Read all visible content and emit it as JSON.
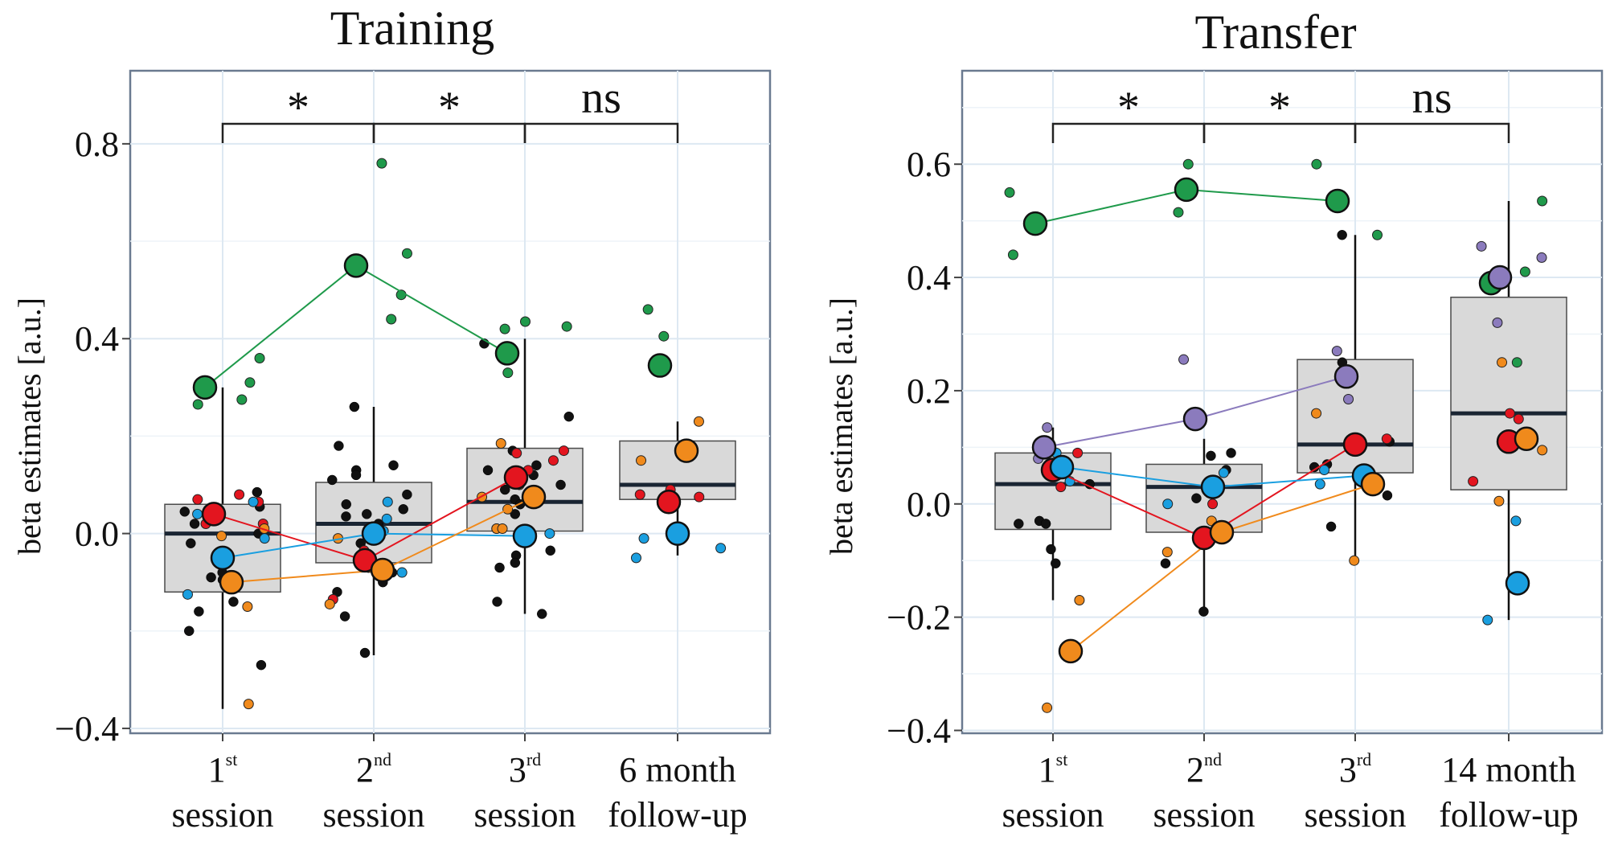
{
  "figure": {
    "width": 2003,
    "height": 1046
  },
  "chart_data": [
    {
      "type": "box_scatter",
      "title": "Training",
      "ylabel": "beta estimates [a.u.]",
      "ylim": [
        -0.41,
        0.95
      ],
      "yticks": [
        -0.4,
        0.0,
        0.4,
        0.8
      ],
      "ytick_labels": [
        "−0.4",
        "0.0",
        "0.4",
        "0.8"
      ],
      "categories": [
        {
          "line1": "1",
          "sup": "st",
          "line2": "session"
        },
        {
          "line1": "2",
          "sup": "nd",
          "line2": "session"
        },
        {
          "line1": "3",
          "sup": "rd",
          "line2": "session"
        },
        {
          "line1": "6 month",
          "sup": "",
          "line2": "follow-up"
        }
      ],
      "boxes": [
        {
          "q1": -0.12,
          "median": 0.0,
          "q3": 0.06,
          "low": -0.36,
          "high": 0.3
        },
        {
          "q1": -0.06,
          "median": 0.02,
          "q3": 0.105,
          "low": -0.25,
          "high": 0.26
        },
        {
          "q1": 0.005,
          "median": 0.065,
          "q3": 0.175,
          "low": -0.165,
          "high": 0.4
        },
        {
          "q1": 0.07,
          "median": 0.1,
          "q3": 0.19,
          "low": -0.045,
          "high": 0.23
        }
      ],
      "significance": [
        {
          "from": 0,
          "to": 1,
          "label": "*"
        },
        {
          "from": 1,
          "to": 2,
          "label": "*"
        },
        {
          "from": 2,
          "to": 3,
          "label": "ns"
        }
      ],
      "groups": [
        {
          "name": "green",
          "color": "#1f9a4b",
          "means": [
            0.3,
            0.55,
            0.37,
            0.345
          ],
          "points": [
            [
              0,
              0.265
            ],
            [
              0,
              0.275
            ],
            [
              0,
              0.31
            ],
            [
              0,
              0.36
            ],
            [
              1,
              0.575
            ],
            [
              1,
              0.49
            ],
            [
              1,
              0.44
            ],
            [
              1,
              0.76
            ],
            [
              2,
              0.435
            ],
            [
              2,
              0.425
            ],
            [
              2,
              0.42
            ],
            [
              2,
              0.33
            ],
            [
              3,
              0.46
            ],
            [
              3,
              0.405
            ],
            [
              3,
              0.18
            ]
          ]
        },
        {
          "name": "red",
          "color": "#e3151f",
          "means": [
            0.04,
            -0.055,
            0.115,
            0.065
          ],
          "points": [
            [
              0,
              0.08
            ],
            [
              0,
              0.07
            ],
            [
              0,
              0.065
            ],
            [
              0,
              0.02
            ],
            [
              0,
              0.02
            ],
            [
              1,
              -0.005
            ],
            [
              1,
              -0.035
            ],
            [
              1,
              -0.135
            ],
            [
              2,
              0.17
            ],
            [
              2,
              0.165
            ],
            [
              2,
              0.15
            ],
            [
              2,
              0.13
            ],
            [
              3,
              0.09
            ],
            [
              3,
              0.08
            ],
            [
              3,
              0.075
            ]
          ]
        },
        {
          "name": "blue",
          "color": "#1a9fe0",
          "means": [
            -0.05,
            0.0,
            -0.005,
            0.0
          ],
          "points": [
            [
              0,
              0.065
            ],
            [
              0,
              0.04
            ],
            [
              0,
              -0.01
            ],
            [
              0,
              -0.125
            ],
            [
              1,
              0.065
            ],
            [
              1,
              0.03
            ],
            [
              1,
              0.005
            ],
            [
              1,
              -0.08
            ],
            [
              2,
              0.01
            ],
            [
              2,
              0.0
            ],
            [
              3,
              -0.01
            ],
            [
              3,
              -0.03
            ],
            [
              3,
              -0.05
            ]
          ]
        },
        {
          "name": "orange",
          "color": "#f08a1c",
          "means": [
            -0.1,
            -0.075,
            0.075,
            0.17
          ],
          "points": [
            [
              0,
              0.01
            ],
            [
              0,
              -0.005
            ],
            [
              0,
              -0.15
            ],
            [
              0,
              -0.35
            ],
            [
              1,
              -0.01
            ],
            [
              1,
              -0.07
            ],
            [
              1,
              -0.145
            ],
            [
              2,
              0.185
            ],
            [
              2,
              0.1
            ],
            [
              2,
              0.075
            ],
            [
              2,
              0.05
            ],
            [
              2,
              0.01
            ],
            [
              2,
              0.01
            ],
            [
              3,
              0.23
            ],
            [
              3,
              0.15
            ]
          ]
        }
      ],
      "black_points": [
        [
          0,
          0.085
        ],
        [
          0,
          0.055
        ],
        [
          0,
          0.045
        ],
        [
          0,
          0.03
        ],
        [
          0,
          0.0
        ],
        [
          0,
          -0.02
        ],
        [
          0,
          -0.09
        ],
        [
          0,
          -0.095
        ],
        [
          0,
          -0.14
        ],
        [
          0,
          -0.16
        ],
        [
          0,
          -0.2
        ],
        [
          0,
          -0.27
        ],
        [
          0,
          0.03
        ],
        [
          0,
          0.02
        ],
        [
          0,
          -0.08
        ],
        [
          1,
          0.26
        ],
        [
          1,
          0.18
        ],
        [
          1,
          0.14
        ],
        [
          1,
          0.13
        ],
        [
          1,
          0.12
        ],
        [
          1,
          0.11
        ],
        [
          1,
          0.08
        ],
        [
          1,
          0.06
        ],
        [
          1,
          0.05
        ],
        [
          1,
          0.04
        ],
        [
          1,
          0.035
        ],
        [
          1,
          0.02
        ],
        [
          1,
          -0.02
        ],
        [
          1,
          -0.08
        ],
        [
          1,
          -0.1
        ],
        [
          1,
          -0.12
        ],
        [
          1,
          -0.17
        ],
        [
          1,
          -0.245
        ],
        [
          2,
          0.39
        ],
        [
          2,
          0.24
        ],
        [
          2,
          0.17
        ],
        [
          2,
          0.14
        ],
        [
          2,
          0.12
        ],
        [
          2,
          0.1
        ],
        [
          2,
          0.09
        ],
        [
          2,
          0.07
        ],
        [
          2,
          0.06
        ],
        [
          2,
          0.04
        ],
        [
          2,
          -0.035
        ],
        [
          2,
          -0.045
        ],
        [
          2,
          -0.06
        ],
        [
          2,
          -0.07
        ],
        [
          2,
          -0.14
        ],
        [
          2,
          -0.165
        ],
        [
          2,
          0.13
        ]
      ]
    },
    {
      "type": "box_scatter",
      "title": "Transfer",
      "ylabel": "beta estimates [a.u.]",
      "ylim": [
        -0.405,
        0.765
      ],
      "yticks": [
        -0.4,
        -0.2,
        0.0,
        0.2,
        0.4,
        0.6
      ],
      "ytick_labels": [
        "−0.4",
        "−0.2",
        "0.0",
        "0.2",
        "0.4",
        "0.6"
      ],
      "categories": [
        {
          "line1": "1",
          "sup": "st",
          "line2": "session"
        },
        {
          "line1": "2",
          "sup": "nd",
          "line2": "session"
        },
        {
          "line1": "3",
          "sup": "rd",
          "line2": "session"
        },
        {
          "line1": "14 month",
          "sup": "",
          "line2": "follow-up"
        }
      ],
      "boxes": [
        {
          "q1": -0.045,
          "median": 0.035,
          "q3": 0.09,
          "low": -0.17,
          "high": 0.135
        },
        {
          "q1": -0.05,
          "median": 0.03,
          "q3": 0.07,
          "low": -0.19,
          "high": 0.115
        },
        {
          "q1": 0.055,
          "median": 0.105,
          "q3": 0.255,
          "low": -0.1,
          "high": 0.475
        },
        {
          "q1": 0.025,
          "median": 0.16,
          "q3": 0.365,
          "low": -0.205,
          "high": 0.535
        }
      ],
      "significance": [
        {
          "from": 0,
          "to": 1,
          "label": "*"
        },
        {
          "from": 1,
          "to": 2,
          "label": "*"
        },
        {
          "from": 2,
          "to": 3,
          "label": "ns"
        }
      ],
      "groups": [
        {
          "name": "green",
          "color": "#1f9a4b",
          "means": [
            0.495,
            0.555,
            0.535,
            0.39
          ],
          "points": [
            [
              0,
              0.55
            ],
            [
              0,
              0.44
            ],
            [
              1,
              0.6
            ],
            [
              1,
              0.515
            ],
            [
              2,
              0.6
            ],
            [
              2,
              0.475
            ],
            [
              3,
              0.535
            ],
            [
              3,
              0.41
            ],
            [
              3,
              0.25
            ]
          ]
        },
        {
          "name": "purple",
          "color": "#8b7bbd",
          "means": [
            0.1,
            0.15,
            0.225,
            0.4
          ],
          "points": [
            [
              0,
              0.135
            ],
            [
              0,
              0.08
            ],
            [
              1,
              0.255
            ],
            [
              2,
              0.27
            ],
            [
              2,
              0.185
            ],
            [
              3,
              0.455
            ],
            [
              3,
              0.435
            ],
            [
              3,
              0.32
            ]
          ]
        },
        {
          "name": "red",
          "color": "#e3151f",
          "means": [
            0.06,
            -0.06,
            0.105,
            0.11
          ],
          "points": [
            [
              0,
              0.09
            ],
            [
              0,
              0.03
            ],
            [
              1,
              0.0
            ],
            [
              1,
              -0.055
            ],
            [
              2,
              0.115
            ],
            [
              3,
              0.16
            ],
            [
              3,
              0.15
            ],
            [
              3,
              0.04
            ]
          ]
        },
        {
          "name": "blue",
          "color": "#1a9fe0",
          "means": [
            0.065,
            0.03,
            0.05,
            -0.14
          ],
          "points": [
            [
              0,
              0.09
            ],
            [
              0,
              0.04
            ],
            [
              1,
              0.055
            ],
            [
              1,
              0.0
            ],
            [
              2,
              0.035
            ],
            [
              2,
              0.06
            ],
            [
              3,
              -0.03
            ],
            [
              3,
              -0.205
            ]
          ]
        },
        {
          "name": "orange",
          "color": "#f08a1c",
          "means": [
            -0.26,
            -0.05,
            0.035,
            0.115
          ],
          "points": [
            [
              0,
              -0.17
            ],
            [
              0,
              -0.36
            ],
            [
              1,
              -0.03
            ],
            [
              1,
              -0.085
            ],
            [
              2,
              0.16
            ],
            [
              2,
              -0.1
            ],
            [
              3,
              0.25
            ],
            [
              3,
              0.095
            ],
            [
              3,
              0.005
            ]
          ]
        }
      ],
      "black_points": [
        [
          0,
          0.035
        ],
        [
          0,
          -0.03
        ],
        [
          0,
          -0.035
        ],
        [
          0,
          -0.035
        ],
        [
          0,
          -0.08
        ],
        [
          0,
          -0.105
        ],
        [
          1,
          0.09
        ],
        [
          1,
          0.085
        ],
        [
          1,
          0.06
        ],
        [
          1,
          0.01
        ],
        [
          1,
          -0.105
        ],
        [
          1,
          -0.19
        ],
        [
          2,
          0.475
        ],
        [
          2,
          0.25
        ],
        [
          2,
          0.07
        ],
        [
          2,
          0.065
        ],
        [
          2,
          0.015
        ],
        [
          2,
          -0.04
        ],
        [
          2,
          0.11
        ]
      ]
    }
  ]
}
